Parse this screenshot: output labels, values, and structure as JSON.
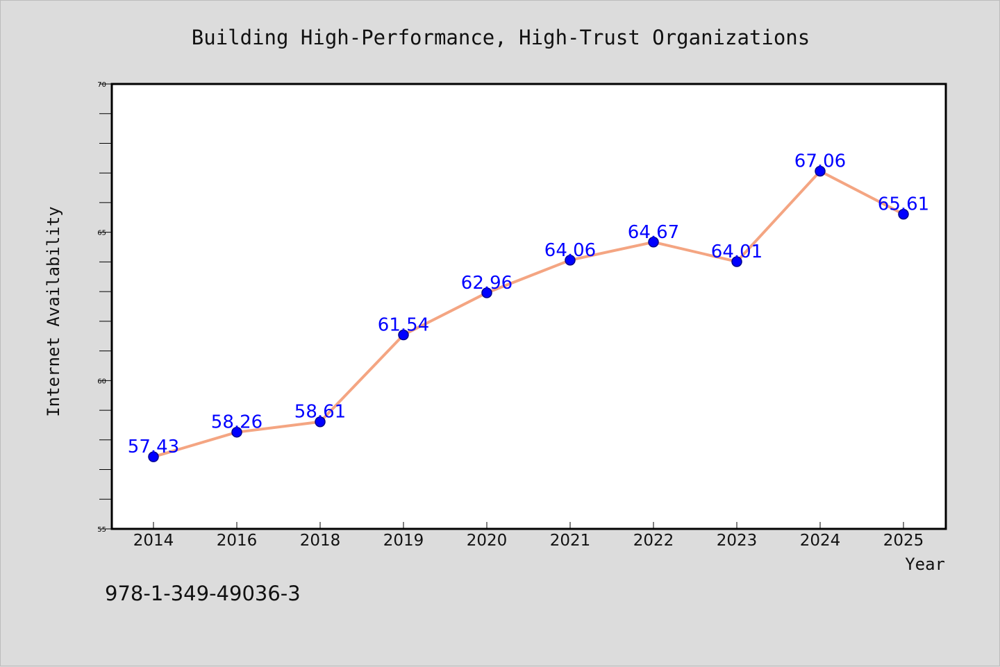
{
  "chart_data": {
    "type": "line",
    "title": "Building High-Performance, High-Trust Organizations",
    "xlabel": "Year",
    "ylabel": "Internet Availability",
    "categories": [
      "2014",
      "2016",
      "2018",
      "2019",
      "2020",
      "2021",
      "2022",
      "2023",
      "2024",
      "2025"
    ],
    "series": [
      {
        "values": [
          57.43,
          58.26,
          58.61,
          61.54,
          62.96,
          64.06,
          64.67,
          64.01,
          67.06,
          65.61
        ],
        "data_labels": [
          "57.43",
          "58.26",
          "58.61",
          "61.54",
          "62.96",
          "64.06",
          "64.67",
          "64.01",
          "67.06",
          "65.61"
        ]
      }
    ],
    "ylim": [
      55,
      70
    ],
    "yticks": [
      55,
      60,
      65,
      70
    ],
    "y_minor_step": 1,
    "grid": false,
    "legend": "none",
    "colors": {
      "line": "#f4a582",
      "marker_fill": "#0000ff",
      "marker_edge": "#00008b",
      "data_label": "#0000ff",
      "plot_background": "#ffffff",
      "figure_background": "#dcdcdc"
    }
  },
  "footer": {
    "isbn": "978-1-349-49036-3"
  }
}
